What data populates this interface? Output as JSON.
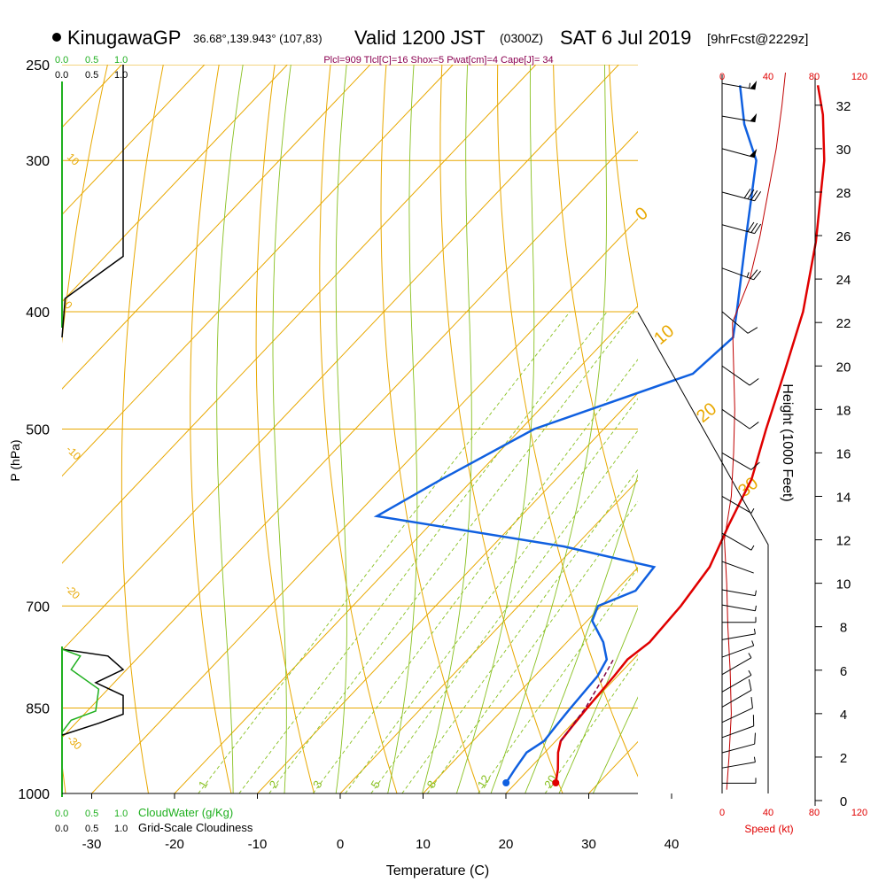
{
  "header": {
    "station": "KinugawaGP",
    "coords": "36.68°,139.943° (107,83)",
    "valid": "Valid 1200 JST",
    "utc": "(0300Z)",
    "date": "SAT 6 Jul 2019",
    "forecast": "[9hrFcst@2229z]",
    "params": "Plcl=909 Tlcl[C]=16 Shox=5 Pwat[cm]=4 Cape[J]= 34"
  },
  "chart_data": {
    "type": "line",
    "subtype": "skew-t sounding",
    "xlabel": "Temperature (C)",
    "ylabel": "P (hPa)",
    "y2label": "Height (1000 Feet)",
    "x_ticks": [
      "-30",
      "-20",
      "-10",
      "0",
      "10",
      "20",
      "30",
      "40"
    ],
    "p_ticks": [
      "250",
      "300",
      "400",
      "500",
      "700",
      "850",
      "1000"
    ],
    "height_ticks": [
      "0",
      "2",
      "4",
      "6",
      "8",
      "10",
      "12",
      "14",
      "16",
      "18",
      "20",
      "22",
      "24",
      "26",
      "28",
      "30",
      "32"
    ],
    "speed_ticks_top": [
      "0",
      "40",
      "80",
      "120"
    ],
    "speed_ticks_bottom": [
      "0",
      "40",
      "80",
      "120"
    ],
    "speed_label": "Speed (kt)",
    "cloudwater_ticks": [
      "0.0",
      "0.5",
      "1.0"
    ],
    "cloudwater_label": "CloudWater (g/Kg)",
    "cloudiness_ticks": [
      "0.0",
      "0.5",
      "1.0"
    ],
    "cloudiness_label": "Grid-Scale Cloudiness",
    "isotherm_labels": [
      "-30",
      "-20",
      "-10",
      "0",
      "10",
      "20",
      "30"
    ],
    "mixing_ratio_labels": [
      "1",
      "2",
      "3",
      "5",
      "8",
      "12",
      "20"
    ],
    "colors": {
      "temperature": "#e00000",
      "dewpoint": "#1060e0",
      "parcel": "#800040",
      "isotherm": "#e8a800",
      "dry_adiabat": "#e8a800",
      "moist_adiabat": "#88c020",
      "mixing_ratio": "#88c020",
      "cloud_water": "#20b020",
      "cloudiness": "#000000",
      "wind": "#000000",
      "speed": "#c00000"
    },
    "temperature_profile": [
      {
        "p": 980,
        "t": 24.8
      },
      {
        "p": 955,
        "t": 23.5
      },
      {
        "p": 925,
        "t": 21.6
      },
      {
        "p": 905,
        "t": 20.6
      },
      {
        "p": 880,
        "t": 20.3
      },
      {
        "p": 850,
        "t": 20.0
      },
      {
        "p": 800,
        "t": 19.6
      },
      {
        "p": 775,
        "t": 19.3
      },
      {
        "p": 750,
        "t": 20.0
      },
      {
        "p": 700,
        "t": 19.6
      },
      {
        "p": 650,
        "t": 18.6
      },
      {
        "p": 600,
        "t": 16.1
      },
      {
        "p": 550,
        "t": 13.6
      },
      {
        "p": 500,
        "t": 9.6
      },
      {
        "p": 450,
        "t": 5.4
      },
      {
        "p": 400,
        "t": 0.6
      },
      {
        "p": 350,
        "t": -5.9
      },
      {
        "p": 300,
        "t": -14.2
      },
      {
        "p": 275,
        "t": -19.6
      },
      {
        "p": 260,
        "t": -23.6
      }
    ],
    "dewpoint_profile": [
      {
        "p": 980,
        "t": 18.8
      },
      {
        "p": 955,
        "t": 18.3
      },
      {
        "p": 925,
        "t": 17.8
      },
      {
        "p": 905,
        "t": 18.6
      },
      {
        "p": 880,
        "t": 18.3
      },
      {
        "p": 850,
        "t": 18.0
      },
      {
        "p": 800,
        "t": 17.6
      },
      {
        "p": 775,
        "t": 16.8
      },
      {
        "p": 750,
        "t": 14.4
      },
      {
        "p": 720,
        "t": 10.6
      },
      {
        "p": 700,
        "t": 9.6
      },
      {
        "p": 680,
        "t": 12.4
      },
      {
        "p": 650,
        "t": 11.9
      },
      {
        "p": 625,
        "t": -1.4
      },
      {
        "p": 590,
        "t": -27.4
      },
      {
        "p": 550,
        "t": -23.8
      },
      {
        "p": 500,
        "t": -18.4
      },
      {
        "p": 450,
        "t": -5.6
      },
      {
        "p": 420,
        "t": -4.9
      },
      {
        "p": 400,
        "t": -7.4
      },
      {
        "p": 350,
        "t": -14.4
      },
      {
        "p": 300,
        "t": -22.4
      },
      {
        "p": 280,
        "t": -28.0
      },
      {
        "p": 260,
        "t": -33.0
      }
    ],
    "parcel_profile": [
      {
        "p": 905,
        "t": 20.6
      },
      {
        "p": 850,
        "t": 19.8
      },
      {
        "p": 800,
        "t": 18.4
      },
      {
        "p": 775,
        "t": 17.6
      }
    ],
    "surface": {
      "p": 980,
      "t": 24.8,
      "td": 18.8
    },
    "wind_speed_profile_kt": [
      {
        "h": 0.5,
        "s": 4
      },
      {
        "h": 2,
        "s": 6
      },
      {
        "h": 4,
        "s": 8
      },
      {
        "h": 6,
        "s": 7
      },
      {
        "h": 8,
        "s": 5
      },
      {
        "h": 10,
        "s": 4
      },
      {
        "h": 12,
        "s": 2
      },
      {
        "h": 14,
        "s": 8
      },
      {
        "h": 16,
        "s": 10
      },
      {
        "h": 18,
        "s": 11
      },
      {
        "h": 20,
        "s": 10
      },
      {
        "h": 22,
        "s": 9
      },
      {
        "h": 24,
        "s": 24
      },
      {
        "h": 26,
        "s": 33
      },
      {
        "h": 28,
        "s": 40
      },
      {
        "h": 30,
        "s": 47
      },
      {
        "h": 32,
        "s": 52
      },
      {
        "h": 33.5,
        "s": 55
      }
    ],
    "wind_barbs": [
      {
        "h": 0.8,
        "dir": 270,
        "spd": 5
      },
      {
        "h": 1.5,
        "dir": 280,
        "spd": 5
      },
      {
        "h": 2.2,
        "dir": 285,
        "spd": 10
      },
      {
        "h": 2.9,
        "dir": 290,
        "spd": 10
      },
      {
        "h": 3.6,
        "dir": 295,
        "spd": 10
      },
      {
        "h": 4.3,
        "dir": 300,
        "spd": 10
      },
      {
        "h": 5.0,
        "dir": 300,
        "spd": 5
      },
      {
        "h": 5.8,
        "dir": 300,
        "spd": 5
      },
      {
        "h": 6.6,
        "dir": 290,
        "spd": 5
      },
      {
        "h": 7.4,
        "dir": 280,
        "spd": 5
      },
      {
        "h": 8.2,
        "dir": 270,
        "spd": 5
      },
      {
        "h": 9.0,
        "dir": 260,
        "spd": 5
      },
      {
        "h": 9.7,
        "dir": 260,
        "spd": 5
      },
      {
        "h": 11.0,
        "dir": 250,
        "spd": 0
      },
      {
        "h": 12.3,
        "dir": 240,
        "spd": 5
      },
      {
        "h": 14.0,
        "dir": 240,
        "spd": 5
      },
      {
        "h": 16.0,
        "dir": 240,
        "spd": 10
      },
      {
        "h": 18.0,
        "dir": 235,
        "spd": 10
      },
      {
        "h": 20.0,
        "dir": 235,
        "spd": 10
      },
      {
        "h": 22.5,
        "dir": 230,
        "spd": 10
      },
      {
        "h": 24.5,
        "dir": 250,
        "spd": 25
      },
      {
        "h": 26.5,
        "dir": 255,
        "spd": 30
      },
      {
        "h": 28.0,
        "dir": 255,
        "spd": 40
      },
      {
        "h": 30.0,
        "dir": 255,
        "spd": 50
      },
      {
        "h": 31.5,
        "dir": 260,
        "spd": 50
      },
      {
        "h": 33.0,
        "dir": 260,
        "spd": 55
      }
    ],
    "cloudiness_profile_upper": [
      {
        "p": 250,
        "v": 1.0
      },
      {
        "p": 360,
        "v": 1.0
      },
      {
        "p": 390,
        "v": 0.05
      },
      {
        "p": 420,
        "v": 0.0
      }
    ],
    "cloudiness_profile_lower": [
      {
        "p": 760,
        "v": 0.0
      },
      {
        "p": 770,
        "v": 0.75
      },
      {
        "p": 790,
        "v": 1.0
      },
      {
        "p": 810,
        "v": 0.55
      },
      {
        "p": 830,
        "v": 1.0
      },
      {
        "p": 860,
        "v": 1.0
      },
      {
        "p": 875,
        "v": 0.6
      },
      {
        "p": 895,
        "v": 0.0
      }
    ],
    "cloudwater_profile": [
      {
        "p": 760,
        "v": 0.0
      },
      {
        "p": 770,
        "v": 0.3
      },
      {
        "p": 790,
        "v": 0.15
      },
      {
        "p": 820,
        "v": 0.6
      },
      {
        "p": 855,
        "v": 0.55
      },
      {
        "p": 870,
        "v": 0.15
      },
      {
        "p": 890,
        "v": 0.0
      }
    ]
  }
}
